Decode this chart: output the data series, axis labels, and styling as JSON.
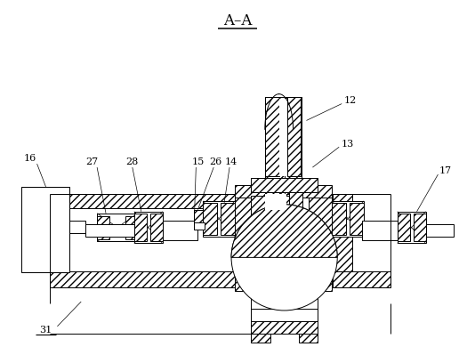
{
  "title": "A–A",
  "bg": "#ffffff",
  "lc": "#000000",
  "lw": 0.7,
  "label_fs": 8.0,
  "hatch_density": "////"
}
